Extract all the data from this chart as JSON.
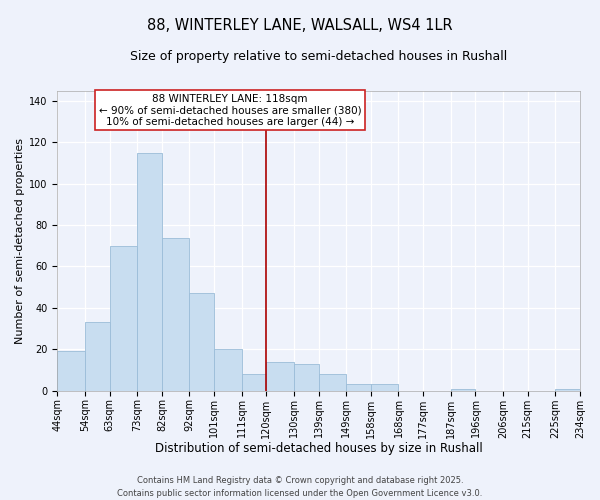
{
  "title": "88, WINTERLEY LANE, WALSALL, WS4 1LR",
  "subtitle": "Size of property relative to semi-detached houses in Rushall",
  "xlabel": "Distribution of semi-detached houses by size in Rushall",
  "ylabel": "Number of semi-detached properties",
  "bin_edges": [
    44,
    54,
    63,
    73,
    82,
    92,
    101,
    111,
    120,
    130,
    139,
    149,
    158,
    168,
    177,
    187,
    196,
    206,
    215,
    225,
    234
  ],
  "bin_labels": [
    "44sqm",
    "54sqm",
    "63sqm",
    "73sqm",
    "82sqm",
    "92sqm",
    "101sqm",
    "111sqm",
    "120sqm",
    "130sqm",
    "139sqm",
    "149sqm",
    "158sqm",
    "168sqm",
    "177sqm",
    "187sqm",
    "196sqm",
    "206sqm",
    "215sqm",
    "225sqm",
    "234sqm"
  ],
  "counts": [
    19,
    33,
    70,
    115,
    74,
    47,
    20,
    8,
    14,
    13,
    8,
    3,
    3,
    0,
    0,
    1,
    0,
    0,
    0,
    1
  ],
  "bar_color": "#c8ddf0",
  "bar_edge_color": "#9bbcd8",
  "vline_x": 120,
  "vline_color": "#aa0000",
  "annotation_title": "88 WINTERLEY LANE: 118sqm",
  "annotation_line1": "← 90% of semi-detached houses are smaller (380)",
  "annotation_line2": "10% of semi-detached houses are larger (44) →",
  "ylim": [
    0,
    145
  ],
  "yticks": [
    0,
    20,
    40,
    60,
    80,
    100,
    120,
    140
  ],
  "background_color": "#eef2fb",
  "grid_color": "#ffffff",
  "footer_line1": "Contains HM Land Registry data © Crown copyright and database right 2025.",
  "footer_line2": "Contains public sector information licensed under the Open Government Licence v3.0.",
  "title_fontsize": 10.5,
  "subtitle_fontsize": 9,
  "xlabel_fontsize": 8.5,
  "ylabel_fontsize": 8,
  "tick_fontsize": 7,
  "footer_fontsize": 6,
  "annotation_fontsize": 7.5,
  "annotation_title_fontsize": 8
}
